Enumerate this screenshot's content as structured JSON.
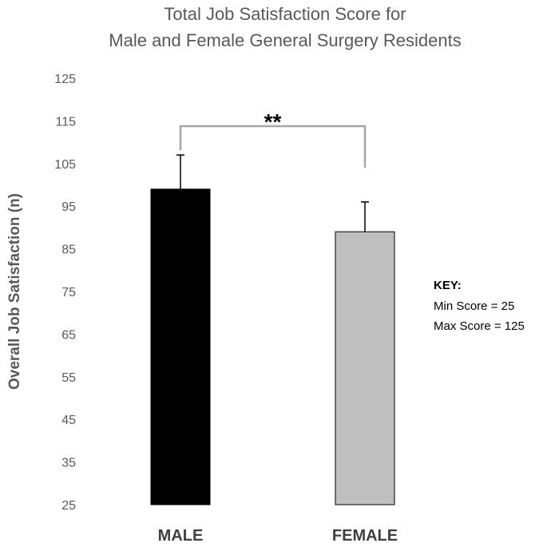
{
  "chart_data": {
    "type": "bar",
    "title_lines": [
      "Total Job Satisfaction Score for",
      "Male and Female General Surgery Residents"
    ],
    "xlabel": "",
    "ylabel": "Overall Job Satisfaction (n)",
    "ylim": [
      25,
      125
    ],
    "yticks": [
      25,
      35,
      45,
      55,
      65,
      75,
      85,
      95,
      105,
      115,
      125
    ],
    "categories": [
      "MALE",
      "FEMALE"
    ],
    "values": [
      99,
      89
    ],
    "error_plus": [
      8,
      7
    ],
    "bar_colors": [
      "#000000",
      "#bfbfbf"
    ],
    "significance": {
      "label": "**",
      "between": [
        "MALE",
        "FEMALE"
      ]
    },
    "grid": false,
    "key": {
      "title": "KEY:",
      "lines": [
        "Min Score = 25",
        "Max Score = 125"
      ]
    }
  }
}
